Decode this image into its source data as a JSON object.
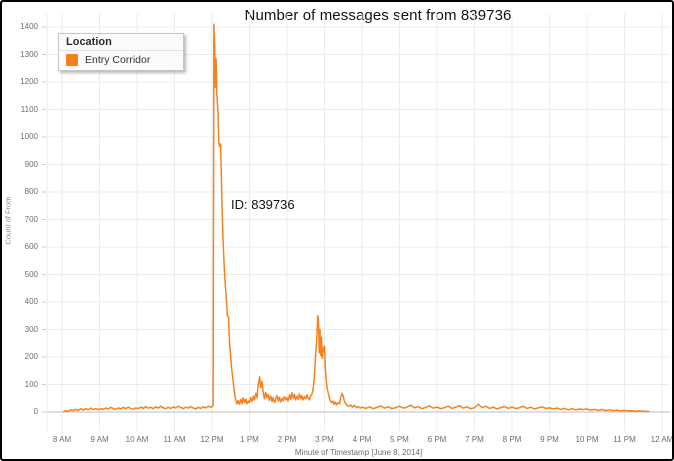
{
  "window": {
    "kind": "chart-screenshot"
  },
  "chart_data": {
    "type": "line",
    "title": "Number of messages sent from 839736",
    "xlabel": "Minute of Timestamp [June 8, 2014]",
    "ylabel": "Count of From",
    "legend": {
      "title": "Location",
      "position": "top-left"
    },
    "grid": true,
    "x_axis": {
      "unit": "hour_of_day",
      "start": 8,
      "end": 24,
      "tick_labels": [
        "8 AM",
        "9 AM",
        "10 AM",
        "11 AM",
        "12 PM",
        "1 PM",
        "2 PM",
        "3 PM",
        "4 PM",
        "5 PM",
        "6 PM",
        "7 PM",
        "8 PM",
        "9 PM",
        "10 PM",
        "11 PM",
        "12 AM"
      ]
    },
    "y_axis": {
      "min": 0,
      "max": 1400,
      "tick_step": 100
    },
    "annotations": [
      {
        "text": "ID: 839736",
        "near_x_hour": 12.9,
        "near_y_value": 730
      }
    ],
    "series": [
      {
        "name": "Entry Corridor",
        "color": "#f6821f",
        "points": [
          [
            8.05,
            2
          ],
          [
            8.1,
            5
          ],
          [
            8.17,
            3
          ],
          [
            8.23,
            8
          ],
          [
            8.3,
            5
          ],
          [
            8.37,
            10
          ],
          [
            8.43,
            6
          ],
          [
            8.5,
            12
          ],
          [
            8.57,
            7
          ],
          [
            8.63,
            13
          ],
          [
            8.7,
            8
          ],
          [
            8.77,
            14
          ],
          [
            8.83,
            9
          ],
          [
            8.9,
            12
          ],
          [
            8.97,
            8
          ],
          [
            9.03,
            13
          ],
          [
            9.1,
            9
          ],
          [
            9.17,
            15
          ],
          [
            9.23,
            11
          ],
          [
            9.3,
            17
          ],
          [
            9.37,
            12
          ],
          [
            9.43,
            9
          ],
          [
            9.5,
            15
          ],
          [
            9.57,
            11
          ],
          [
            9.63,
            17
          ],
          [
            9.7,
            12
          ],
          [
            9.77,
            18
          ],
          [
            9.83,
            13
          ],
          [
            9.9,
            10
          ],
          [
            9.97,
            15
          ],
          [
            10.03,
            12
          ],
          [
            10.1,
            18
          ],
          [
            10.17,
            13
          ],
          [
            10.23,
            20
          ],
          [
            10.3,
            14
          ],
          [
            10.37,
            17
          ],
          [
            10.43,
            12
          ],
          [
            10.5,
            19
          ],
          [
            10.57,
            14
          ],
          [
            10.63,
            21
          ],
          [
            10.7,
            15
          ],
          [
            10.77,
            12
          ],
          [
            10.83,
            17
          ],
          [
            10.9,
            13
          ],
          [
            10.97,
            19
          ],
          [
            11.03,
            15
          ],
          [
            11.1,
            21
          ],
          [
            11.17,
            16
          ],
          [
            11.23,
            12
          ],
          [
            11.3,
            18
          ],
          [
            11.37,
            14
          ],
          [
            11.43,
            20
          ],
          [
            11.5,
            15
          ],
          [
            11.57,
            11
          ],
          [
            11.63,
            17
          ],
          [
            11.7,
            13
          ],
          [
            11.77,
            19
          ],
          [
            11.83,
            15
          ],
          [
            11.9,
            21
          ],
          [
            11.97,
            17
          ],
          [
            12.0,
            20
          ],
          [
            12.03,
            24
          ],
          [
            12.05,
            1410
          ],
          [
            12.07,
            1340
          ],
          [
            12.09,
            1180
          ],
          [
            12.11,
            1285
          ],
          [
            12.13,
            1150
          ],
          [
            12.16,
            1090
          ],
          [
            12.18,
            985
          ],
          [
            12.2,
            965
          ],
          [
            12.23,
            975
          ],
          [
            12.26,
            780
          ],
          [
            12.29,
            640
          ],
          [
            12.32,
            545
          ],
          [
            12.35,
            470
          ],
          [
            12.38,
            415
          ],
          [
            12.41,
            350
          ],
          [
            12.44,
            345
          ],
          [
            12.47,
            250
          ],
          [
            12.5,
            195
          ],
          [
            12.53,
            150
          ],
          [
            12.56,
            115
          ],
          [
            12.6,
            70
          ],
          [
            12.63,
            45
          ],
          [
            12.66,
            30
          ],
          [
            12.7,
            42
          ],
          [
            12.73,
            28
          ],
          [
            12.77,
            46
          ],
          [
            12.8,
            30
          ],
          [
            12.83,
            52
          ],
          [
            12.87,
            34
          ],
          [
            12.9,
            48
          ],
          [
            12.93,
            30
          ],
          [
            12.97,
            40
          ],
          [
            13.0,
            34
          ],
          [
            13.03,
            52
          ],
          [
            13.07,
            38
          ],
          [
            13.1,
            58
          ],
          [
            13.13,
            44
          ],
          [
            13.17,
            68
          ],
          [
            13.2,
            52
          ],
          [
            13.23,
            96
          ],
          [
            13.27,
            128
          ],
          [
            13.3,
            88
          ],
          [
            13.33,
            112
          ],
          [
            13.37,
            66
          ],
          [
            13.4,
            48
          ],
          [
            13.43,
            72
          ],
          [
            13.47,
            52
          ],
          [
            13.5,
            64
          ],
          [
            13.53,
            42
          ],
          [
            13.57,
            58
          ],
          [
            13.6,
            38
          ],
          [
            13.63,
            52
          ],
          [
            13.67,
            34
          ],
          [
            13.7,
            48
          ],
          [
            13.73,
            60
          ],
          [
            13.77,
            40
          ],
          [
            13.8,
            54
          ],
          [
            13.83,
            36
          ],
          [
            13.87,
            50
          ],
          [
            13.9,
            40
          ],
          [
            13.93,
            56
          ],
          [
            13.97,
            44
          ],
          [
            14.0,
            52
          ],
          [
            14.03,
            40
          ],
          [
            14.07,
            62
          ],
          [
            14.1,
            46
          ],
          [
            14.13,
            70
          ],
          [
            14.17,
            50
          ],
          [
            14.2,
            64
          ],
          [
            14.23,
            44
          ],
          [
            14.27,
            58
          ],
          [
            14.3,
            46
          ],
          [
            14.33,
            66
          ],
          [
            14.37,
            48
          ],
          [
            14.4,
            60
          ],
          [
            14.43,
            44
          ],
          [
            14.47,
            56
          ],
          [
            14.5,
            48
          ],
          [
            14.53,
            62
          ],
          [
            14.57,
            50
          ],
          [
            14.6,
            44
          ],
          [
            14.63,
            58
          ],
          [
            14.67,
            66
          ],
          [
            14.7,
            88
          ],
          [
            14.73,
            130
          ],
          [
            14.76,
            200
          ],
          [
            14.79,
            255
          ],
          [
            14.82,
            350
          ],
          [
            14.84,
            330
          ],
          [
            14.86,
            215
          ],
          [
            14.88,
            300
          ],
          [
            14.9,
            205
          ],
          [
            14.92,
            272
          ],
          [
            14.94,
            195
          ],
          [
            14.97,
            232
          ],
          [
            15.0,
            240
          ],
          [
            15.02,
            160
          ],
          [
            15.05,
            110
          ],
          [
            15.08,
            80
          ],
          [
            15.12,
            58
          ],
          [
            15.15,
            42
          ],
          [
            15.18,
            34
          ],
          [
            15.22,
            40
          ],
          [
            15.25,
            28
          ],
          [
            15.28,
            36
          ],
          [
            15.32,
            26
          ],
          [
            15.35,
            34
          ],
          [
            15.4,
            30
          ],
          [
            15.43,
            52
          ],
          [
            15.47,
            68
          ],
          [
            15.5,
            56
          ],
          [
            15.53,
            40
          ],
          [
            15.57,
            30
          ],
          [
            15.6,
            24
          ],
          [
            15.65,
            20
          ],
          [
            15.7,
            26
          ],
          [
            15.75,
            18
          ],
          [
            15.8,
            24
          ],
          [
            15.85,
            16
          ],
          [
            15.9,
            20
          ],
          [
            15.95,
            14
          ],
          [
            16.0,
            18
          ],
          [
            16.1,
            13
          ],
          [
            16.2,
            19
          ],
          [
            16.3,
            12
          ],
          [
            16.4,
            17
          ],
          [
            16.5,
            22
          ],
          [
            16.6,
            14
          ],
          [
            16.7,
            19
          ],
          [
            16.8,
            12
          ],
          [
            16.9,
            16
          ],
          [
            17.0,
            21
          ],
          [
            17.1,
            14
          ],
          [
            17.2,
            18
          ],
          [
            17.3,
            25
          ],
          [
            17.4,
            15
          ],
          [
            17.5,
            20
          ],
          [
            17.6,
            12
          ],
          [
            17.7,
            17
          ],
          [
            17.8,
            22
          ],
          [
            17.9,
            14
          ],
          [
            18.0,
            18
          ],
          [
            18.1,
            12
          ],
          [
            18.2,
            16
          ],
          [
            18.3,
            21
          ],
          [
            18.4,
            13
          ],
          [
            18.5,
            18
          ],
          [
            18.6,
            23
          ],
          [
            18.7,
            14
          ],
          [
            18.8,
            19
          ],
          [
            18.9,
            12
          ],
          [
            19.0,
            16
          ],
          [
            19.1,
            28
          ],
          [
            19.2,
            16
          ],
          [
            19.3,
            21
          ],
          [
            19.4,
            13
          ],
          [
            19.5,
            18
          ],
          [
            19.6,
            11
          ],
          [
            19.7,
            16
          ],
          [
            19.8,
            20
          ],
          [
            19.9,
            13
          ],
          [
            20.0,
            18
          ],
          [
            20.1,
            12
          ],
          [
            20.2,
            16
          ],
          [
            20.3,
            21
          ],
          [
            20.4,
            13
          ],
          [
            20.5,
            17
          ],
          [
            20.6,
            11
          ],
          [
            20.7,
            15
          ],
          [
            20.8,
            19
          ],
          [
            20.9,
            13
          ],
          [
            21.0,
            15
          ],
          [
            21.1,
            11
          ],
          [
            21.2,
            14
          ],
          [
            21.3,
            9
          ],
          [
            21.4,
            13
          ],
          [
            21.5,
            8
          ],
          [
            21.6,
            12
          ],
          [
            21.7,
            8
          ],
          [
            21.8,
            11
          ],
          [
            21.9,
            9
          ],
          [
            22.0,
            11
          ],
          [
            22.1,
            7
          ],
          [
            22.2,
            10
          ],
          [
            22.3,
            6
          ],
          [
            22.4,
            9
          ],
          [
            22.5,
            5
          ],
          [
            22.6,
            8
          ],
          [
            22.7,
            5
          ],
          [
            22.8,
            7
          ],
          [
            22.9,
            4
          ],
          [
            23.0,
            6
          ],
          [
            23.1,
            4
          ],
          [
            23.2,
            5
          ],
          [
            23.3,
            3
          ],
          [
            23.4,
            4
          ],
          [
            23.5,
            3
          ],
          [
            23.55,
            2
          ],
          [
            23.65,
            2
          ]
        ]
      }
    ]
  },
  "colors": {
    "series_orange": "#f6821f",
    "gridline": "#ebebeb",
    "axis_line": "#bdbdbd",
    "tick_text": "#6e6e6e"
  }
}
